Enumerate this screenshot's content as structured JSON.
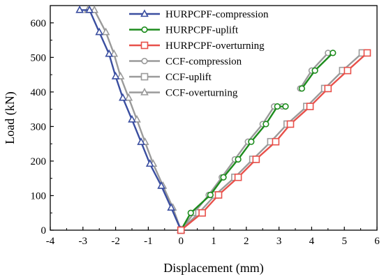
{
  "chart_data": {
    "type": "line",
    "title": "",
    "xlabel": "Displacement (mm)",
    "ylabel": "Load (kN)",
    "xlim": [
      -4,
      6
    ],
    "ylim": [
      0,
      650
    ],
    "xticks": [
      -4,
      -3,
      -2,
      -1,
      0,
      1,
      2,
      3,
      4,
      5,
      6
    ],
    "yticks": [
      0,
      100,
      200,
      300,
      400,
      500,
      600
    ],
    "grid": false,
    "legend_position": "top-center",
    "series": [
      {
        "name": "HURPCPF-compression",
        "color": "#3a4ea0",
        "marker": "triangle",
        "x": [
          0,
          -0.3,
          -0.6,
          -0.95,
          -1.22,
          -1.5,
          -1.78,
          -2.0,
          -2.2,
          -2.5,
          -2.8,
          -3.1
        ],
        "y": [
          0,
          65,
          128,
          192,
          255,
          320,
          383,
          445,
          510,
          573,
          637,
          637
        ]
      },
      {
        "name": "HURPCPF-uplift",
        "color": "#1d8c1d",
        "marker": "circle",
        "x": [
          0,
          0.3,
          0.9,
          1.3,
          1.75,
          2.15,
          2.6,
          2.95,
          3.2,
          null,
          3.7,
          4.1,
          4.65
        ],
        "y": [
          0,
          50,
          102,
          153,
          205,
          256,
          307,
          358,
          358,
          null,
          410,
          462,
          513
        ]
      },
      {
        "name": "HURPCPF-overturning",
        "color": "#e8504a",
        "marker": "square",
        "x": [
          0,
          0.65,
          1.15,
          1.75,
          2.3,
          2.9,
          3.35,
          3.95,
          4.5,
          5.1,
          5.7
        ],
        "y": [
          0,
          50,
          102,
          153,
          205,
          256,
          307,
          358,
          410,
          462,
          513
        ]
      },
      {
        "name": "CCF-compression",
        "color": "#9a9a9a",
        "marker": "circle",
        "x": [
          0,
          0.4,
          0.85,
          1.25,
          1.65,
          2.05,
          2.5,
          2.85,
          3.1,
          null,
          3.65,
          4.0,
          4.5
        ],
        "y": [
          0,
          50,
          102,
          153,
          205,
          256,
          307,
          358,
          358,
          null,
          410,
          462,
          513
        ]
      },
      {
        "name": "CCF-uplift",
        "color": "#9a9a9a",
        "marker": "square",
        "x": [
          0,
          0.55,
          1.05,
          1.65,
          2.2,
          2.75,
          3.25,
          3.85,
          4.4,
          4.95,
          5.55
        ],
        "y": [
          0,
          50,
          102,
          153,
          205,
          256,
          307,
          358,
          410,
          462,
          513
        ]
      },
      {
        "name": "CCF-overturning",
        "color": "#9a9a9a",
        "marker": "triangle",
        "x": [
          0,
          -0.25,
          -0.55,
          -0.85,
          -1.1,
          -1.35,
          -1.6,
          -1.85,
          -2.05,
          -2.3,
          -2.65,
          -2.85
        ],
        "y": [
          0,
          65,
          128,
          192,
          255,
          320,
          383,
          445,
          510,
          573,
          637,
          637
        ]
      }
    ]
  }
}
